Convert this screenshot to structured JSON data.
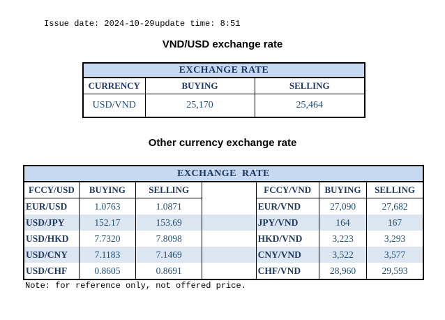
{
  "meta": {
    "issue_date": "Issue date: 2024-10-29",
    "update_time": "update time: 8:51"
  },
  "table1": {
    "title": "VND/USD exchange rate",
    "header": "EXCHANGE RATE",
    "columns": [
      "CURRENCY",
      "BUYING",
      "SELLING"
    ],
    "rows": [
      [
        "USD/VND",
        "25,170",
        "25,464"
      ]
    ]
  },
  "table2": {
    "title": "Other currency exchange rate",
    "header": "EXCHANGE  RATE",
    "columns": [
      "FCCY/USD",
      "BUYING",
      "SELLING",
      "",
      "FCCY/VND",
      "BUYING",
      "SELLING"
    ],
    "rows": [
      [
        "EUR/USD",
        "1.0763",
        "1.0871",
        "",
        "EUR/VND",
        "27,090",
        "27,682"
      ],
      [
        "USD/JPY",
        "152.17",
        "153.69",
        "",
        "JPY/VND",
        "164",
        "167"
      ],
      [
        "USD/HKD",
        "7.7320",
        "7.8098",
        "",
        "HKD/VND",
        "3,223",
        "3,293"
      ],
      [
        "USD/CNY",
        "7.1183",
        "7.1469",
        "",
        "CNY/VND",
        "3,522",
        "3,577"
      ],
      [
        "USD/CHF",
        "0.8605",
        "0.8691",
        "",
        "CHF/VND",
        "28,960",
        "29,593"
      ]
    ]
  },
  "note": "Note: for reference only, not offered price.",
  "colors": {
    "header_bg": "#c6d9f0",
    "stripe_bg": "#dce6f1",
    "header_text": "#1f3864",
    "cell_text": "#1f4e79"
  }
}
